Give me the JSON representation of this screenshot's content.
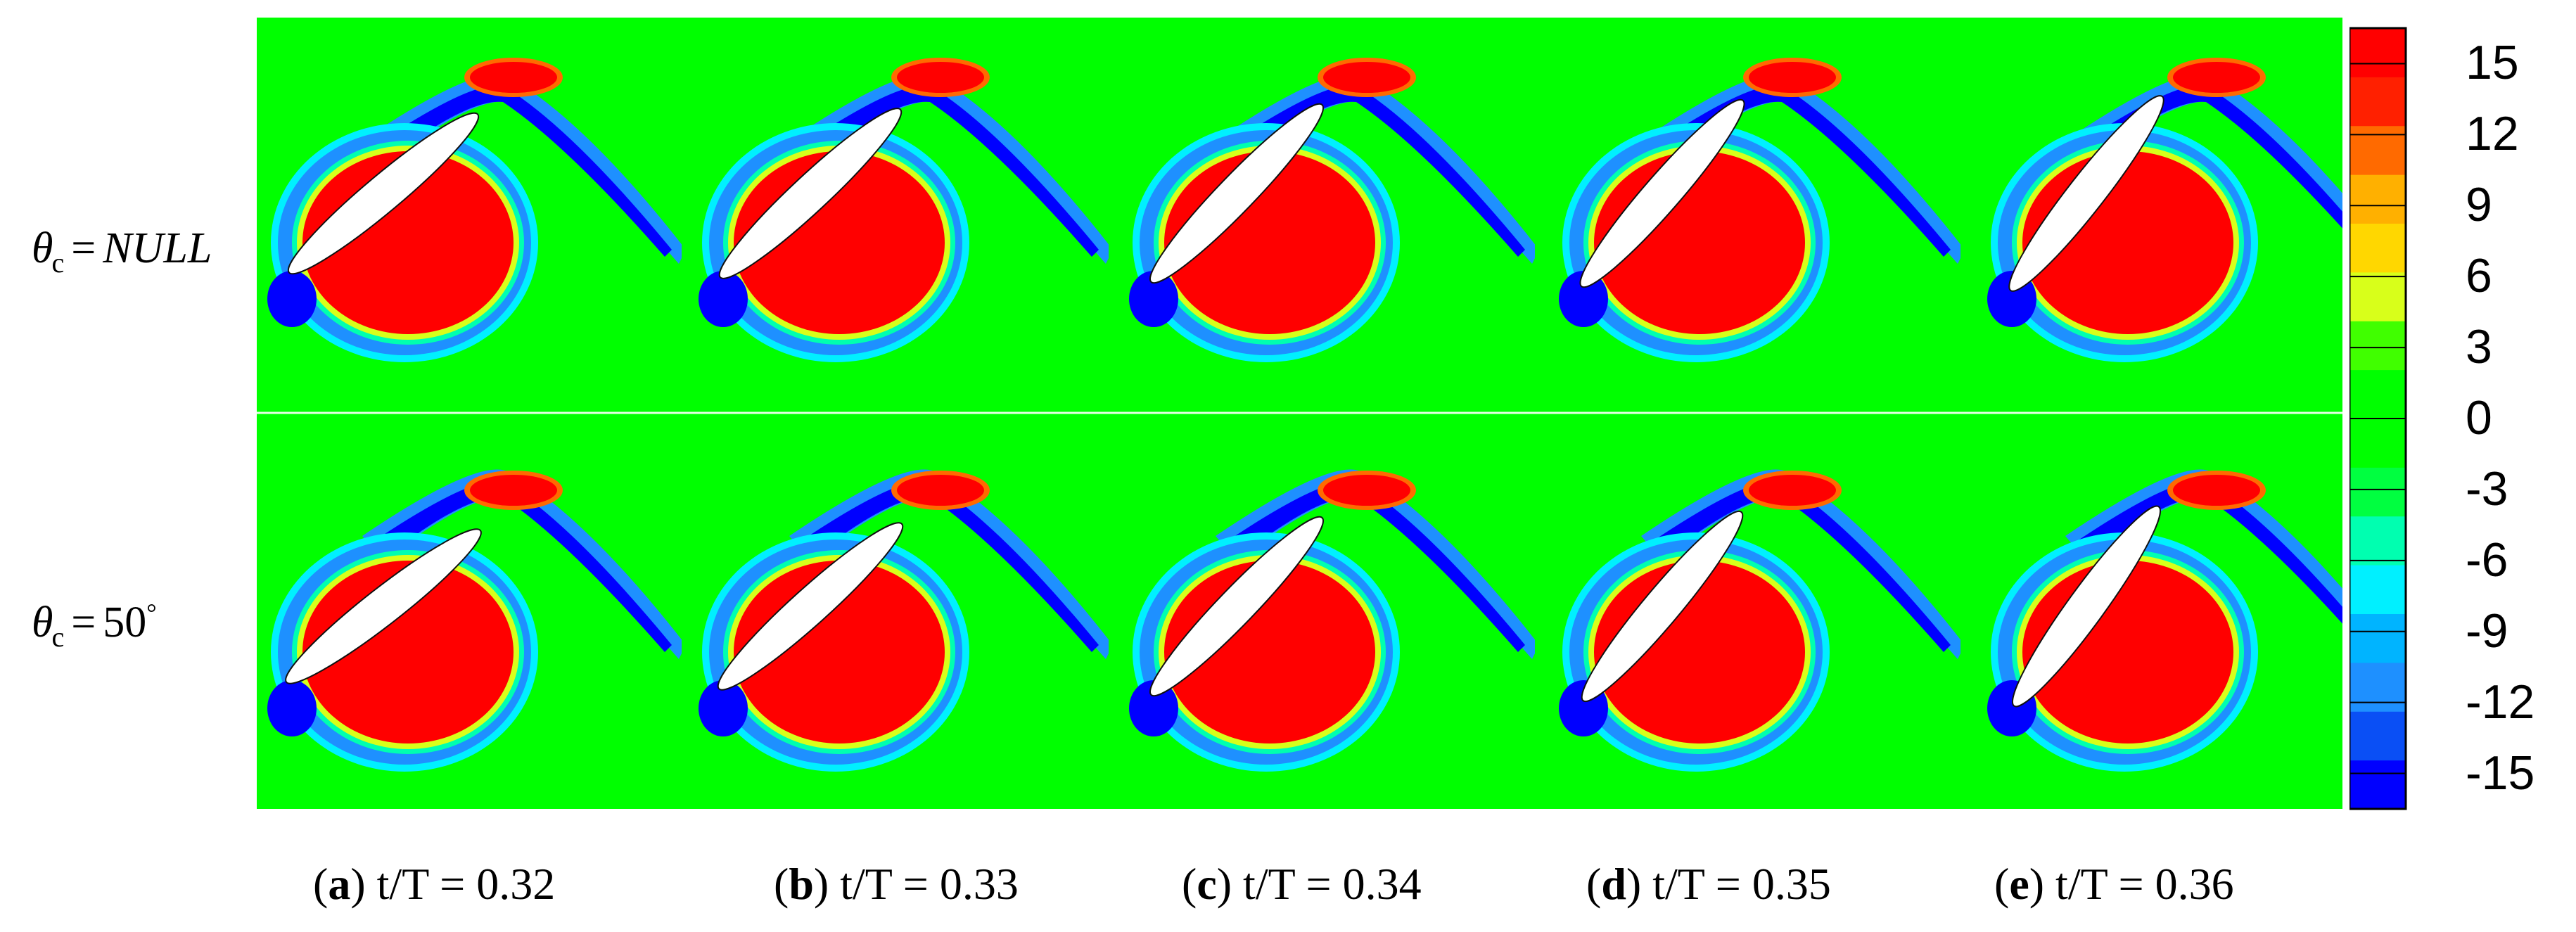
{
  "rows": [
    {
      "symbol": "θ",
      "subscript": "c",
      "equals": "=",
      "value": "NULL",
      "unit": ""
    },
    {
      "symbol": "θ",
      "subscript": "c",
      "equals": "=",
      "value": "50",
      "unit": "°"
    }
  ],
  "panels": [
    {
      "letter": "a",
      "caption": "t/T = 0.32"
    },
    {
      "letter": "b",
      "caption": "t/T = 0.33"
    },
    {
      "letter": "c",
      "caption": "t/T = 0.34"
    },
    {
      "letter": "d",
      "caption": "t/T = 0.35"
    },
    {
      "letter": "e",
      "caption": "t/T = 0.36"
    }
  ],
  "colorbar": {
    "ticks": [
      "15",
      "12",
      "9",
      "6",
      "3",
      "0",
      "-3",
      "-6",
      "-9",
      "-12",
      "-15"
    ],
    "colors": [
      "#0000ff",
      "#0a4ff5",
      "#1e90ff",
      "#00b4ff",
      "#00f0ff",
      "#00ffb0",
      "#00ff40",
      "#00ff00",
      "#00ff00",
      "#40ff00",
      "#d8ff1a",
      "#ffd700",
      "#ffb000",
      "#ff6a00",
      "#ff2000",
      "#ff0000"
    ],
    "background": "#00ff00",
    "positive": "#ff0000",
    "negative": "#0000ff"
  }
}
